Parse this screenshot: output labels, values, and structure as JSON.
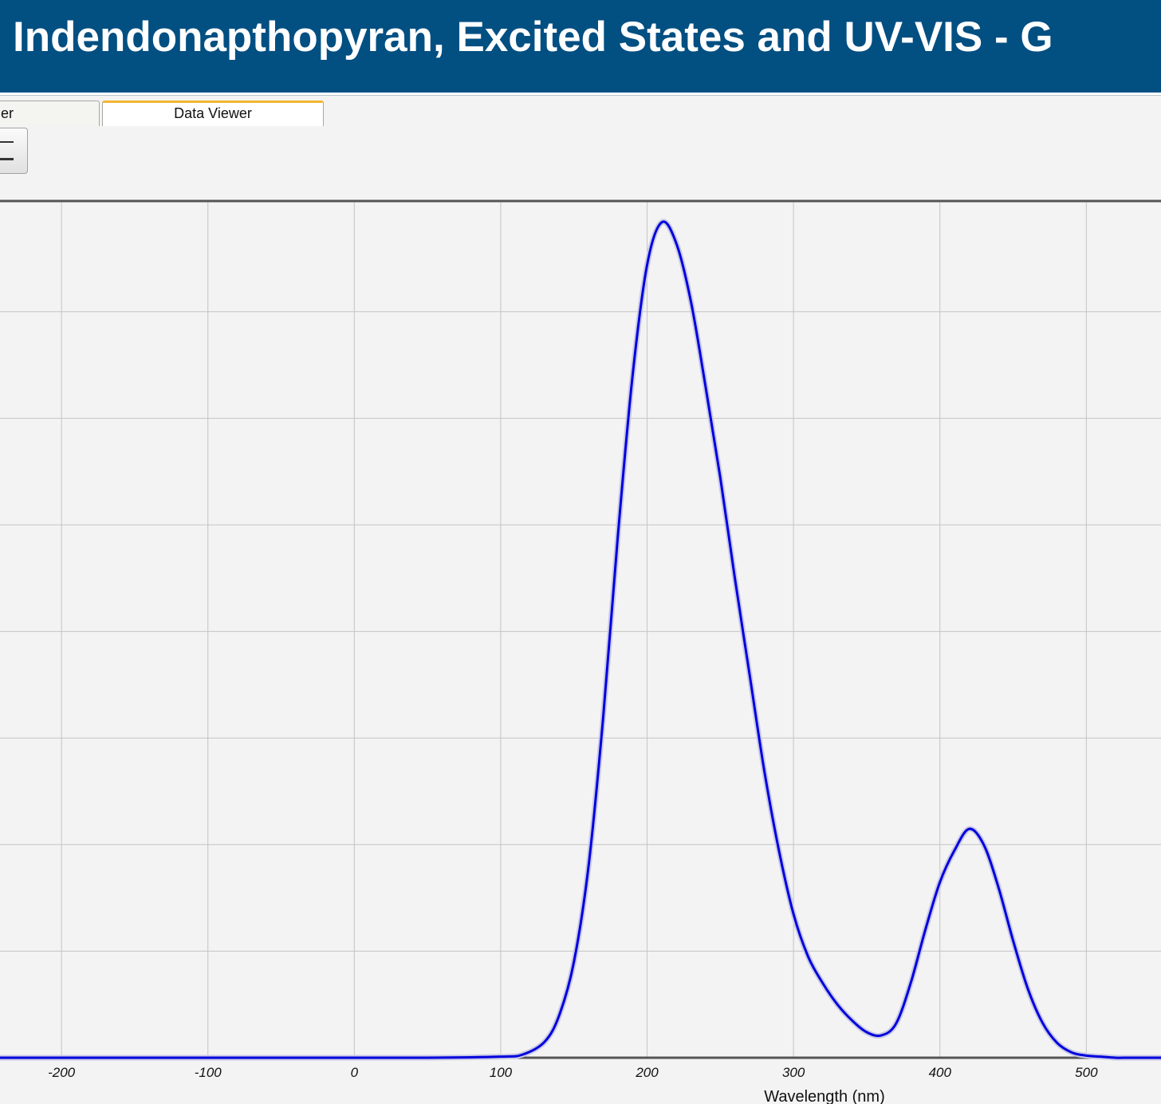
{
  "header": {
    "title": "Indendonapthopyran, Excited States and UV-VIS - G"
  },
  "tabs": [
    {
      "label": "er",
      "active": false
    },
    {
      "label": "Data Viewer",
      "active": true
    }
  ],
  "toolbar": {
    "zoom_button_icon": "minus-icon"
  },
  "chart_data": {
    "type": "line",
    "xlabel": "Wavelength (nm)",
    "ylabel": "",
    "x_ticks": [
      -200,
      -100,
      0,
      100,
      200,
      300,
      400,
      500
    ],
    "xlim": [
      -242,
      551
    ],
    "ylim": [
      0,
      8.05
    ],
    "grid": true,
    "line_color": "#0000dd",
    "series": [
      {
        "x": [
          -242,
          -150,
          -50,
          50,
          100,
          115,
          130,
          140,
          150,
          160,
          170,
          180,
          190,
          200,
          210,
          220,
          230,
          240,
          250,
          260,
          270,
          280,
          290,
          300,
          310,
          320,
          330,
          340,
          350,
          360,
          370,
          380,
          390,
          400,
          410,
          420,
          430,
          440,
          450,
          460,
          470,
          480,
          490,
          500,
          510,
          520,
          530,
          551
        ],
        "y": [
          0,
          0,
          0,
          0,
          0.01,
          0.03,
          0.15,
          0.4,
          0.9,
          1.8,
          3.2,
          4.9,
          6.4,
          7.45,
          7.85,
          7.65,
          7.1,
          6.3,
          5.45,
          4.5,
          3.6,
          2.7,
          1.95,
          1.35,
          0.95,
          0.7,
          0.5,
          0.35,
          0.24,
          0.21,
          0.32,
          0.7,
          1.2,
          1.65,
          1.95,
          2.15,
          2.0,
          1.6,
          1.1,
          0.65,
          0.33,
          0.14,
          0.05,
          0.02,
          0.01,
          0,
          0,
          0
        ]
      }
    ]
  }
}
